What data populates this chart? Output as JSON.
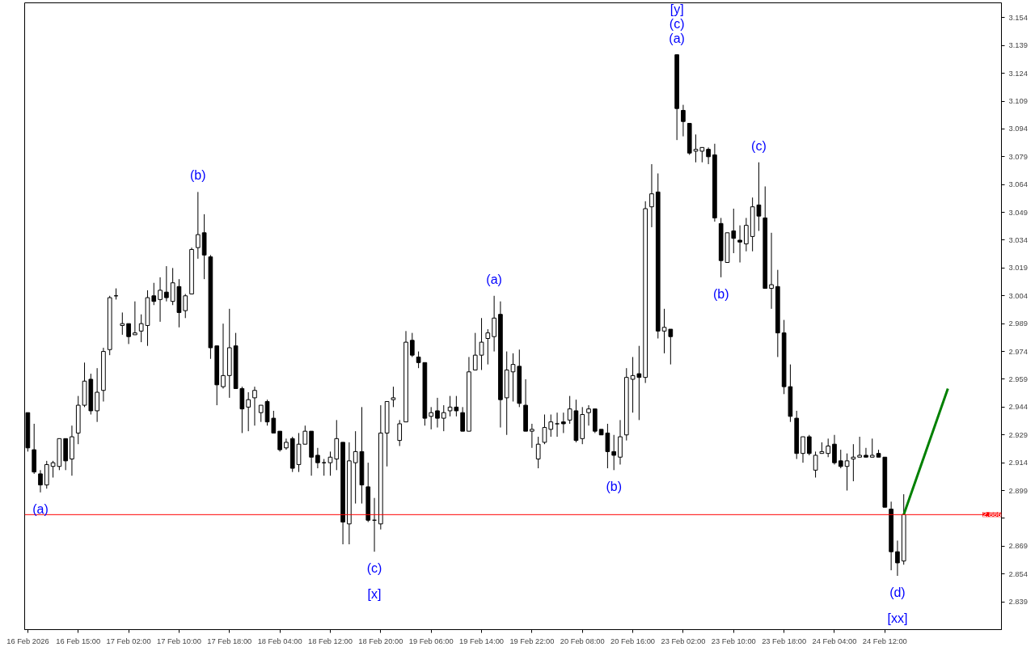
{
  "chart_data": {
    "type": "candlestick",
    "color": "#000000",
    "categories": [
      "16 Feb 2026",
      null,
      null,
      null,
      null,
      null,
      null,
      null,
      "16 Feb 15:00",
      null,
      null,
      null,
      null,
      null,
      null,
      null,
      "17 Feb 02:00",
      null,
      null,
      null,
      null,
      null,
      null,
      null,
      "17 Feb 10:00",
      null,
      null,
      null,
      null,
      null,
      null,
      null,
      "17 Feb 18:00",
      null,
      null,
      null,
      null,
      null,
      null,
      null,
      "18 Feb 04:00",
      null,
      null,
      null,
      null,
      null,
      null,
      null,
      "18 Feb 12:00",
      null,
      null,
      null,
      null,
      null,
      null,
      null,
      "18 Feb 20:00",
      null,
      null,
      null,
      null,
      null,
      null,
      null,
      "19 Feb 06:00",
      null,
      null,
      null,
      null,
      null,
      null,
      null,
      "19 Feb 14:00",
      null,
      null,
      null,
      null,
      null,
      null,
      null,
      "19 Feb 22:00",
      null,
      null,
      null,
      null,
      null,
      null,
      null,
      "20 Feb 08:00",
      null,
      null,
      null,
      null,
      null,
      null,
      null,
      "20 Feb 16:00",
      null,
      null,
      null,
      null,
      null,
      null,
      null,
      "23 Feb 02:00",
      null,
      null,
      null,
      null,
      null,
      null,
      null,
      "23 Feb 10:00",
      null,
      null,
      null,
      null,
      null,
      null,
      null,
      "23 Feb 18:00",
      null,
      null,
      null,
      null,
      null,
      null,
      null,
      "24 Feb 04:00",
      null,
      null,
      null,
      null,
      null,
      null,
      null,
      "24 Feb 12:00",
      null,
      null,
      null,
      null,
      null,
      null,
      null,
      null,
      null,
      null,
      null,
      null,
      null,
      null,
      null,
      null,
      null,
      null
    ],
    "ohlc": [
      [
        2.941,
        2.941,
        2.92,
        2.922
      ],
      [
        2.921,
        2.935,
        2.908,
        2.909
      ],
      [
        2.908,
        2.91,
        2.898,
        2.902
      ],
      [
        2.902,
        2.915,
        2.9,
        2.913
      ],
      [
        2.912,
        2.915,
        2.906,
        2.914
      ],
      [
        2.912,
        2.927,
        2.91,
        2.927
      ],
      [
        2.927,
        2.927,
        2.91,
        2.915
      ],
      [
        2.916,
        2.934,
        2.907,
        2.928
      ],
      [
        2.93,
        2.95,
        2.924,
        2.945
      ],
      [
        2.945,
        2.968,
        2.944,
        2.958
      ],
      [
        2.959,
        2.962,
        2.94,
        2.942
      ],
      [
        2.942,
        2.965,
        2.936,
        2.952
      ],
      [
        2.953,
        2.976,
        2.947,
        2.974
      ],
      [
        2.975,
        3.004,
        2.972,
        3.003
      ],
      [
        3.004,
        3.008,
        3.002,
        3.004
      ],
      [
        2.988,
        2.995,
        2.983,
        2.989
      ],
      [
        2.989,
        2.989,
        2.978,
        2.982
      ],
      [
        2.983,
        3.001,
        2.983,
        2.984
      ],
      [
        2.985,
        2.994,
        2.979,
        2.989
      ],
      [
        2.988,
        3.007,
        2.977,
        3.003
      ],
      [
        3.004,
        3.011,
        2.999,
        3.001
      ],
      [
        3.002,
        3.014,
        2.99,
        3.007
      ],
      [
        3.006,
        3.02,
        3.001,
        3.003
      ],
      [
        3.001,
        3.019,
        2.999,
        3.011
      ],
      [
        3.009,
        3.013,
        2.987,
        2.995
      ],
      [
        2.996,
        3.005,
        2.992,
        3.004
      ],
      [
        3.005,
        3.03,
        3.005,
        3.029
      ],
      [
        3.03,
        3.06,
        3.024,
        3.037
      ],
      [
        3.038,
        3.048,
        3.013,
        3.026
      ],
      [
        3.025,
        3.026,
        2.97,
        2.976
      ],
      [
        2.977,
        2.977,
        2.945,
        2.956
      ],
      [
        2.955,
        2.989,
        2.954,
        2.961
      ],
      [
        2.961,
        2.997,
        2.949,
        2.976
      ],
      [
        2.977,
        2.984,
        2.954,
        2.954
      ],
      [
        2.954,
        2.955,
        2.93,
        2.943
      ],
      [
        2.944,
        2.952,
        2.931,
        2.948
      ],
      [
        2.949,
        2.955,
        2.934,
        2.953
      ],
      [
        2.941,
        2.945,
        2.936,
        2.945
      ],
      [
        2.947,
        2.948,
        2.934,
        2.936
      ],
      [
        2.938,
        2.942,
        2.93,
        2.93
      ],
      [
        2.931,
        2.931,
        2.92,
        2.921
      ],
      [
        2.922,
        2.927,
        2.921,
        2.925
      ],
      [
        2.927,
        2.928,
        2.909,
        2.911
      ],
      [
        2.913,
        2.93,
        2.909,
        2.924
      ],
      [
        2.924,
        2.934,
        2.924,
        2.931
      ],
      [
        2.931,
        2.931,
        2.907,
        2.917
      ],
      [
        2.918,
        2.922,
        2.911,
        2.914
      ],
      [
        2.914,
        2.916,
        2.907,
        2.914
      ],
      [
        2.914,
        2.92,
        2.907,
        2.917
      ],
      [
        2.916,
        2.937,
        2.91,
        2.927
      ],
      [
        2.925,
        2.925,
        2.87,
        2.882
      ],
      [
        2.881,
        2.925,
        2.87,
        2.915
      ],
      [
        2.914,
        2.931,
        2.892,
        2.92
      ],
      [
        2.92,
        2.944,
        2.892,
        2.902
      ],
      [
        2.901,
        2.914,
        2.882,
        2.883
      ],
      [
        2.883,
        2.895,
        2.866,
        2.883
      ],
      [
        2.881,
        2.945,
        2.878,
        2.93
      ],
      [
        2.93,
        2.947,
        2.912,
        2.947
      ],
      [
        2.948,
        2.955,
        2.944,
        2.949
      ],
      [
        2.926,
        2.937,
        2.923,
        2.935
      ],
      [
        2.936,
        2.985,
        2.936,
        2.979
      ],
      [
        2.98,
        2.984,
        2.971,
        2.972
      ],
      [
        2.971,
        2.974,
        2.965,
        2.968
      ],
      [
        2.968,
        2.968,
        2.934,
        2.938
      ],
      [
        2.939,
        2.944,
        2.932,
        2.941
      ],
      [
        2.942,
        2.949,
        2.933,
        2.938
      ],
      [
        2.938,
        2.945,
        2.931,
        2.941
      ],
      [
        2.942,
        2.95,
        2.939,
        2.944
      ],
      [
        2.944,
        2.95,
        2.939,
        2.942
      ],
      [
        2.941,
        2.944,
        2.931,
        2.931
      ],
      [
        2.931,
        2.971,
        2.931,
        2.963
      ],
      [
        2.964,
        2.984,
        2.964,
        2.972
      ],
      [
        2.972,
        2.992,
        2.964,
        2.979
      ],
      [
        2.981,
        2.986,
        2.967,
        2.984
      ],
      [
        2.982,
        3.004,
        2.974,
        2.992
      ],
      [
        2.994,
        3.001,
        2.933,
        2.948
      ],
      [
        2.949,
        2.974,
        2.929,
        2.964
      ],
      [
        2.963,
        2.973,
        2.947,
        2.967
      ],
      [
        2.966,
        2.975,
        2.944,
        2.946
      ],
      [
        2.945,
        2.959,
        2.931,
        2.931
      ],
      [
        2.931,
        2.935,
        2.922,
        2.932
      ],
      [
        2.916,
        2.928,
        2.911,
        2.924
      ],
      [
        2.925,
        2.94,
        2.924,
        2.933
      ],
      [
        2.932,
        2.94,
        2.928,
        2.936
      ],
      [
        2.935,
        2.941,
        2.928,
        2.935
      ],
      [
        2.936,
        2.941,
        2.93,
        2.935
      ],
      [
        2.937,
        2.95,
        2.935,
        2.943
      ],
      [
        2.942,
        2.948,
        2.925,
        2.926
      ],
      [
        2.927,
        2.944,
        2.924,
        2.94
      ],
      [
        2.941,
        2.945,
        2.934,
        2.943
      ],
      [
        2.943,
        2.943,
        2.93,
        2.931
      ],
      [
        2.932,
        2.932,
        2.929,
        2.929
      ],
      [
        2.93,
        2.935,
        2.911,
        2.92
      ],
      [
        2.92,
        2.929,
        2.91,
        2.918
      ],
      [
        2.917,
        2.937,
        2.913,
        2.928
      ],
      [
        2.929,
        2.965,
        2.926,
        2.96
      ],
      [
        2.959,
        2.971,
        2.941,
        2.961
      ],
      [
        2.962,
        2.977,
        2.937,
        2.96
      ],
      [
        2.96,
        3.055,
        2.957,
        3.051
      ],
      [
        3.052,
        3.075,
        3.041,
        3.059
      ],
      [
        3.06,
        3.07,
        2.981,
        2.985
      ],
      [
        2.985,
        2.997,
        2.973,
        2.987
      ],
      [
        2.986,
        2.986,
        2.967,
        2.982
      ],
      [
        3.134,
        3.134,
        3.088,
        3.105
      ],
      [
        3.104,
        3.107,
        3.09,
        3.098
      ],
      [
        3.097,
        3.097,
        3.08,
        3.081
      ],
      [
        3.082,
        3.091,
        3.076,
        3.083
      ],
      [
        3.082,
        3.084,
        3.076,
        3.084
      ],
      [
        3.083,
        3.084,
        3.075,
        3.079
      ],
      [
        3.08,
        3.086,
        3.044,
        3.046
      ],
      [
        3.043,
        3.046,
        3.014,
        3.023
      ],
      [
        3.022,
        3.038,
        3.022,
        3.038
      ],
      [
        3.039,
        3.051,
        3.027,
        3.035
      ],
      [
        3.034,
        3.042,
        3.022,
        3.033
      ],
      [
        3.032,
        3.046,
        3.028,
        3.042
      ],
      [
        3.036,
        3.057,
        3.028,
        3.052
      ],
      [
        3.053,
        3.076,
        3.039,
        3.047
      ],
      [
        3.046,
        3.063,
        3.008,
        3.008
      ],
      [
        3.008,
        3.038,
        2.997,
        3.01
      ],
      [
        3.009,
        3.018,
        2.971,
        2.984
      ],
      [
        2.984,
        2.991,
        2.951,
        2.955
      ],
      [
        2.955,
        2.967,
        2.936,
        2.939
      ],
      [
        2.938,
        2.942,
        2.916,
        2.919
      ],
      [
        2.919,
        2.928,
        2.914,
        2.928
      ],
      [
        2.928,
        2.929,
        2.918,
        2.919
      ],
      [
        2.91,
        2.92,
        2.906,
        2.918
      ],
      [
        2.919,
        2.925,
        2.919,
        2.92
      ],
      [
        2.919,
        2.927,
        2.917,
        2.923
      ],
      [
        2.924,
        2.929,
        2.913,
        2.914
      ],
      [
        2.915,
        2.921,
        2.911,
        2.912
      ],
      [
        2.912,
        2.919,
        2.899,
        2.915
      ],
      [
        2.916,
        2.924,
        2.904,
        2.917
      ],
      [
        2.917,
        2.928,
        2.917,
        2.918
      ],
      [
        2.918,
        2.922,
        2.917,
        2.917
      ],
      [
        2.917,
        2.927,
        2.917,
        2.918
      ],
      [
        2.919,
        2.921,
        2.917,
        2.917
      ],
      [
        2.917,
        2.917,
        2.89,
        2.89
      ],
      [
        2.889,
        2.893,
        2.856,
        2.866
      ],
      [
        2.866,
        2.872,
        2.853,
        2.86
      ],
      [
        2.861,
        2.897,
        2.859,
        2.886
      ],
      null,
      null,
      null,
      null,
      null,
      null,
      null,
      null,
      null,
      null,
      null,
      null,
      null,
      null,
      null
    ],
    "series": [
      {
        "type": "line",
        "color": "#008000",
        "values": [
          null,
          null,
          null,
          null,
          null,
          null,
          null,
          null,
          null,
          null,
          null,
          null,
          null,
          null,
          null,
          null,
          null,
          null,
          null,
          null,
          null,
          null,
          null,
          null,
          null,
          null,
          null,
          null,
          null,
          null,
          null,
          null,
          null,
          null,
          null,
          null,
          null,
          null,
          null,
          null,
          null,
          null,
          null,
          null,
          null,
          null,
          null,
          null,
          null,
          null,
          null,
          null,
          null,
          null,
          null,
          null,
          null,
          null,
          null,
          null,
          null,
          null,
          null,
          null,
          null,
          null,
          null,
          null,
          null,
          null,
          null,
          null,
          null,
          null,
          null,
          null,
          null,
          null,
          null,
          null,
          null,
          null,
          null,
          null,
          null,
          null,
          null,
          null,
          null,
          null,
          null,
          null,
          null,
          null,
          null,
          null,
          null,
          null,
          null,
          null,
          null,
          null,
          null,
          null,
          null,
          null,
          null,
          null,
          null,
          null,
          null,
          null,
          null,
          null,
          null,
          null,
          null,
          null,
          null,
          null,
          null,
          null,
          null,
          null,
          null,
          null,
          null,
          null,
          null,
          null,
          null,
          null,
          null,
          null,
          null,
          null,
          null,
          null,
          null,
          2.886,
          null,
          null,
          null,
          null,
          null,
          null,
          2.954,
          null,
          null,
          null,
          null,
          null,
          null,
          null,
          null
        ]
      }
    ],
    "ylim": [
      2.824,
      3.162
    ],
    "yticks": [
      2.839,
      2.854,
      2.869,
      {
        "value": 2.884,
        "label": null
      },
      2.899,
      2.914,
      2.929,
      2.944,
      2.959,
      2.974,
      2.989,
      3.004,
      3.019,
      3.034,
      3.049,
      3.064,
      3.079,
      3.094,
      3.109,
      3.124,
      3.139,
      3.154
    ],
    "ref_lines": [
      {
        "axis": "y",
        "value": 2.886,
        "label": "2.886",
        "color": "#ff0000"
      }
    ],
    "annotations": [
      {
        "text": "(a)",
        "y": 2.898
      },
      {
        "text": "(b)",
        "y": 3.06
      },
      {
        "text": "(c)",
        "y": 2.866
      },
      {
        "text": "[x]",
        "y": 2.866
      },
      {
        "text": "(a)",
        "y": 3.004
      },
      {
        "text": "(b)",
        "y": 2.91
      },
      {
        "text": "(a)",
        "y": 3.134
      },
      {
        "text": "(c)",
        "y": 3.134
      },
      {
        "text": "[y]",
        "y": 3.134
      },
      {
        "text": "(b)",
        "y": 3.014
      },
      {
        "text": "(c)",
        "y": 3.076
      },
      {
        "text": "(d)",
        "y": 2.853
      },
      {
        "text": "[xx]",
        "y": 2.853
      }
    ],
    "grid": false
  }
}
